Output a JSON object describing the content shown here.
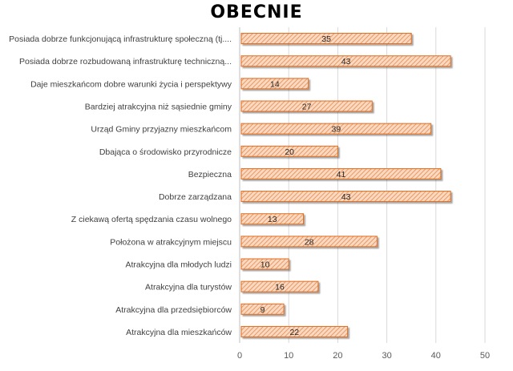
{
  "chart_data": {
    "type": "bar",
    "orientation": "horizontal",
    "title": "OBECNIE",
    "xlabel": "",
    "ylabel": "",
    "xlim": [
      0,
      50
    ],
    "xticks": [
      0,
      10,
      20,
      30,
      40,
      50
    ],
    "grid": "vertical",
    "legend": "none",
    "bar_fill": "#f6c9a8",
    "bar_stroke": "#e06a1b",
    "categories": [
      "Posiada dobrze funkcjonującą infrastrukturę społeczną (tj....",
      "Posiada dobrze rozbudowaną infrastrukturę techniczną...",
      "Daje mieszkańcom dobre warunki życia i perspektywy",
      "Bardziej atrakcyjna niż sąsiednie gminy",
      "Urząd Gminy przyjazny mieszkańcom",
      "Dbająca o środowisko przyrodnicze",
      "Bezpieczna",
      "Dobrze zarządzana",
      "Z ciekawą ofertą spędzania czasu wolnego",
      "Położona w atrakcyjnym miejscu",
      "Atrakcyjna dla młodych ludzi",
      "Atrakcyjna dla turystów",
      "Atrakcyjna dla przedsiębiorców",
      "Atrakcyjna dla mieszkańców"
    ],
    "values": [
      35,
      43,
      14,
      27,
      39,
      20,
      41,
      43,
      13,
      28,
      10,
      16,
      9,
      22
    ]
  }
}
